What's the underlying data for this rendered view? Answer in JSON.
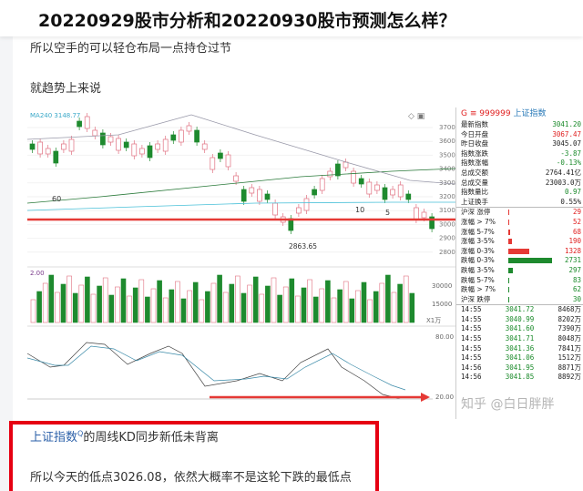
{
  "article": {
    "title": "20220929股市分析和20220930股市预测怎么样？",
    "para1": "所以空手的可以轻仓布局一点持仓过节",
    "para2": "就趋势上来说",
    "link": "上证指数",
    "para3_rest": "的周线KD同步新低未背离",
    "para4": "所以今天的低点3026.08，依然大概率不是这轮下跌的最低点"
  },
  "chart": {
    "ma_label": "MA240  3148.77",
    "price_ticks": [
      "3700",
      "3600",
      "3500",
      "3400",
      "3300",
      "3200",
      "3100",
      "3000",
      "2900",
      "2800"
    ],
    "low_label": "2863.65",
    "marker_labels": [
      "60",
      "10",
      "5"
    ],
    "volume_label": "2.00",
    "volume_ticks": [
      "30000",
      "15000",
      "X1万"
    ],
    "kd_ticks": [
      "80.00",
      "20.00"
    ],
    "colors": {
      "up": "#e07080",
      "down": "#1e8a2e",
      "support": "#e53935",
      "arrow": "#e53935"
    }
  },
  "panel": {
    "code": "G ≡ 999999",
    "name": "上证指数",
    "stats": [
      {
        "label": "最新指数",
        "value": "3041.20",
        "c": "g"
      },
      {
        "label": "今日开盘",
        "value": "3067.47",
        "c": "r"
      },
      {
        "label": "昨日收盘",
        "value": "3045.07",
        "c": "k"
      },
      {
        "label": "指数涨跌",
        "value": "-3.87",
        "c": "g"
      },
      {
        "label": "指数涨幅",
        "value": "-0.13%",
        "c": "g"
      },
      {
        "label": "总成交额",
        "value": "2764.41亿",
        "c": "k"
      },
      {
        "label": "总成交量",
        "value": "23003.0万",
        "c": "k"
      },
      {
        "label": "指数量比",
        "value": "0.97",
        "c": "g"
      },
      {
        "label": "上证换手",
        "value": "0.55%",
        "c": "k"
      }
    ],
    "breadth": [
      {
        "label": "沪深 涨停",
        "value": "29",
        "c": "r",
        "bar": 1
      },
      {
        "label": "涨幅 > 7%",
        "value": "52",
        "c": "r",
        "bar": 1
      },
      {
        "label": "涨幅 5-7%",
        "value": "68",
        "c": "r",
        "bar": 2
      },
      {
        "label": "涨幅 3-5%",
        "value": "190",
        "c": "r",
        "bar": 4
      },
      {
        "label": "涨幅 0-3%",
        "value": "1328",
        "c": "r",
        "bar": 23
      },
      {
        "label": "跌幅 0-3%",
        "value": "2731",
        "c": "g",
        "bar": 48
      },
      {
        "label": "跌幅 3-5%",
        "value": "297",
        "c": "g",
        "bar": 5
      },
      {
        "label": "跌幅 5-7%",
        "value": "83",
        "c": "g",
        "bar": 1
      },
      {
        "label": "跌幅 > 7%",
        "value": "62",
        "c": "g",
        "bar": 1
      },
      {
        "label": "沪深 跌停",
        "value": "30",
        "c": "g",
        "bar": 1
      }
    ],
    "ticks": [
      {
        "time": "14:55",
        "price": "3041.72",
        "vol": "8468万"
      },
      {
        "time": "14:55",
        "price": "3040.99",
        "vol": "8202万"
      },
      {
        "time": "14:55",
        "price": "3041.60",
        "vol": "7390万"
      },
      {
        "time": "14:55",
        "price": "3041.71",
        "vol": "8048万"
      },
      {
        "time": "14:55",
        "price": "3041.36",
        "vol": "7841万"
      },
      {
        "time": "14:55",
        "price": "3041.06",
        "vol": "1512万"
      },
      {
        "time": "14:56",
        "price": "3041.95",
        "vol": "8871万"
      },
      {
        "time": "14:56",
        "price": "3041.85",
        "vol": "8892万"
      }
    ]
  },
  "watermark": "知乎 @白日胖胖"
}
